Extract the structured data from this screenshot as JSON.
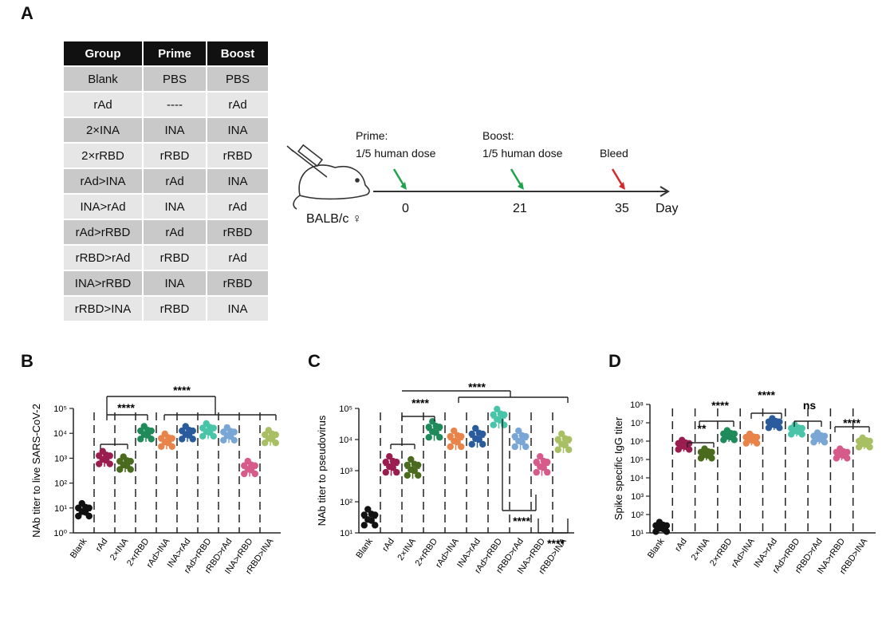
{
  "panels": {
    "A": "A",
    "B": "B",
    "C": "C",
    "D": "D"
  },
  "table": {
    "headers": [
      "Group",
      "Prime",
      "Boost"
    ],
    "rows": [
      [
        "Blank",
        "PBS",
        "PBS"
      ],
      [
        "rAd",
        "----",
        "rAd"
      ],
      [
        "2×INA",
        "INA",
        "INA"
      ],
      [
        "2×rRBD",
        "rRBD",
        "rRBD"
      ],
      [
        "rAd>INA",
        "rAd",
        "INA"
      ],
      [
        "INA>rAd",
        "INA",
        "rAd"
      ],
      [
        "rAd>rRBD",
        "rAd",
        "rRBD"
      ],
      [
        "rRBD>rAd",
        "rRBD",
        "rAd"
      ],
      [
        "INA>rRBD",
        "INA",
        "rRBD"
      ],
      [
        "rRBD>INA",
        "rRBD",
        "INA"
      ]
    ]
  },
  "timeline": {
    "prime_title": "Prime:",
    "prime_dose": "1/5 human dose",
    "boost_title": "Boost:",
    "boost_dose": "1/5 human dose",
    "bleed": "Bleed",
    "day0": "0",
    "day21": "21",
    "day35": "35",
    "day_label": "Day",
    "mouse_label": "BALB/c ♀",
    "colors": {
      "prime": "#1fa34a",
      "boost": "#1fa34a",
      "bleed": "#d62a2a"
    }
  },
  "chart_data": [
    {
      "type": "scatter",
      "panel": "B",
      "ylabel": "NAb titer to live SARS-CoV-2",
      "log_scale": true,
      "ylim": [
        1,
        100000
      ],
      "yticks": [
        "10⁰",
        "10¹",
        "10²",
        "10³",
        "10⁴",
        "10⁵"
      ],
      "categories": [
        "Blank",
        "rAd",
        "2×INA",
        "2×rRBD",
        "rAd>INA",
        "INA>rAd",
        "rAd>rRBD",
        "rRBD>rAd",
        "INA>rRBD",
        "rRBD>INA"
      ],
      "values": [
        8,
        1000,
        600,
        10000,
        5000,
        10000,
        13000,
        9000,
        400,
        7000
      ],
      "significance": [
        "****",
        "****"
      ]
    },
    {
      "type": "scatter",
      "panel": "C",
      "ylabel": "NAb titer to pseudovirus",
      "log_scale": true,
      "ylim": [
        10,
        100000
      ],
      "yticks": [
        "10¹",
        "10²",
        "10³",
        "10⁴",
        "10⁵"
      ],
      "categories": [
        "Blank",
        "rAd",
        "2×INA",
        "2×rRBD",
        "rAd>INA",
        "INA>rAd",
        "rAd>rRBD",
        "rRBD>rAd",
        "INA>rRBD",
        "rRBD>INA"
      ],
      "values": [
        30,
        1500,
        1200,
        20000,
        10000,
        12000,
        50000,
        10000,
        1500,
        8000
      ],
      "significance": [
        "****",
        "****",
        "****",
        "****"
      ]
    },
    {
      "type": "scatter",
      "panel": "D",
      "ylabel": "Spike specific IgG titer",
      "log_scale": true,
      "ylim": [
        10,
        100000000
      ],
      "yticks": [
        "10¹",
        "10²",
        "10³",
        "10⁴",
        "10⁵",
        "10⁶",
        "10⁷",
        "10⁸"
      ],
      "categories": [
        "Blank",
        "rAd",
        "2×INA",
        "2×rRBD",
        "rAd>INA",
        "INA>rAd",
        "rAd>rRBD",
        "rRBD>rAd",
        "INA>rRBD",
        "rRBD>INA"
      ],
      "values": [
        20,
        600000,
        200000,
        2000000,
        1300000,
        9000000,
        4000000,
        1500000,
        200000,
        800000
      ],
      "significance": [
        "**",
        "****",
        "****",
        "ns",
        "****"
      ]
    }
  ],
  "group_colors": [
    "#111111",
    "#9b1c4f",
    "#4a6b1e",
    "#1f8a5a",
    "#e8834a",
    "#2a5b9c",
    "#48c5a9",
    "#7aa6d6",
    "#d65b8a",
    "#a9bf63"
  ]
}
